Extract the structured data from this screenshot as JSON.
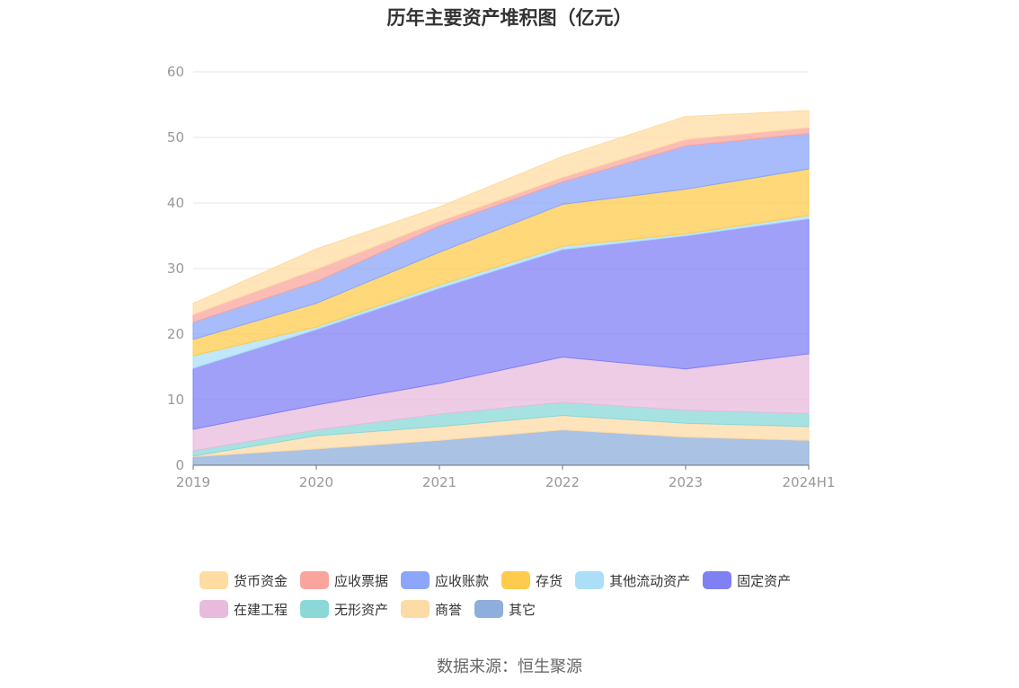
{
  "chart_data": {
    "type": "area",
    "stacked": true,
    "title": "历年主要资产堆积图（亿元）",
    "categories": [
      "2019",
      "2020",
      "2021",
      "2022",
      "2023",
      "2024H1"
    ],
    "ylim": [
      0,
      60
    ],
    "yticks": [
      0,
      10,
      20,
      30,
      40,
      50,
      60
    ],
    "grid": true,
    "legend_position": "bottom",
    "series": [
      {
        "name": "其它",
        "color": "#8EAEDB",
        "values": [
          1.3,
          2.5,
          3.8,
          5.4,
          4.3,
          3.8
        ]
      },
      {
        "name": "商誉",
        "color": "#FDDBA6",
        "values": [
          0.1,
          2.0,
          2.1,
          2.2,
          2.1,
          2.1
        ]
      },
      {
        "name": "无形资产",
        "color": "#8AD8D8",
        "values": [
          0.8,
          0.9,
          1.9,
          2.0,
          2.0,
          2.0
        ]
      },
      {
        "name": "在建工程",
        "color": "#E8BBDC",
        "values": [
          3.3,
          3.8,
          4.7,
          6.9,
          6.3,
          9.1
        ]
      },
      {
        "name": "固定资产",
        "color": "#8080F5",
        "values": [
          9.3,
          11.5,
          14.5,
          16.4,
          20.3,
          20.6
        ]
      },
      {
        "name": "其他流动资产",
        "color": "#ABDFF8",
        "values": [
          1.9,
          0.4,
          0.5,
          0.5,
          0.3,
          0.5
        ]
      },
      {
        "name": "存货",
        "color": "#FFCB4D",
        "values": [
          2.5,
          3.6,
          5.0,
          6.4,
          6.8,
          7.1
        ]
      },
      {
        "name": "应收账款",
        "color": "#8BA6FA",
        "values": [
          2.6,
          3.3,
          4.0,
          3.4,
          6.6,
          5.4
        ]
      },
      {
        "name": "应收票据",
        "color": "#F9A59D",
        "values": [
          1.2,
          1.9,
          0.7,
          0.7,
          1.0,
          0.9
        ]
      },
      {
        "name": "货币资金",
        "color": "#FFDCA2",
        "values": [
          1.7,
          3.1,
          2.2,
          3.2,
          3.5,
          2.6
        ]
      }
    ]
  },
  "legend": {
    "rows": [
      [
        "货币资金",
        "应收票据",
        "应收账款",
        "存货",
        "其他流动资产",
        "固定资产"
      ],
      [
        "在建工程",
        "无形资产",
        "商誉",
        "其它"
      ]
    ]
  },
  "source": "数据来源：恒生聚源"
}
